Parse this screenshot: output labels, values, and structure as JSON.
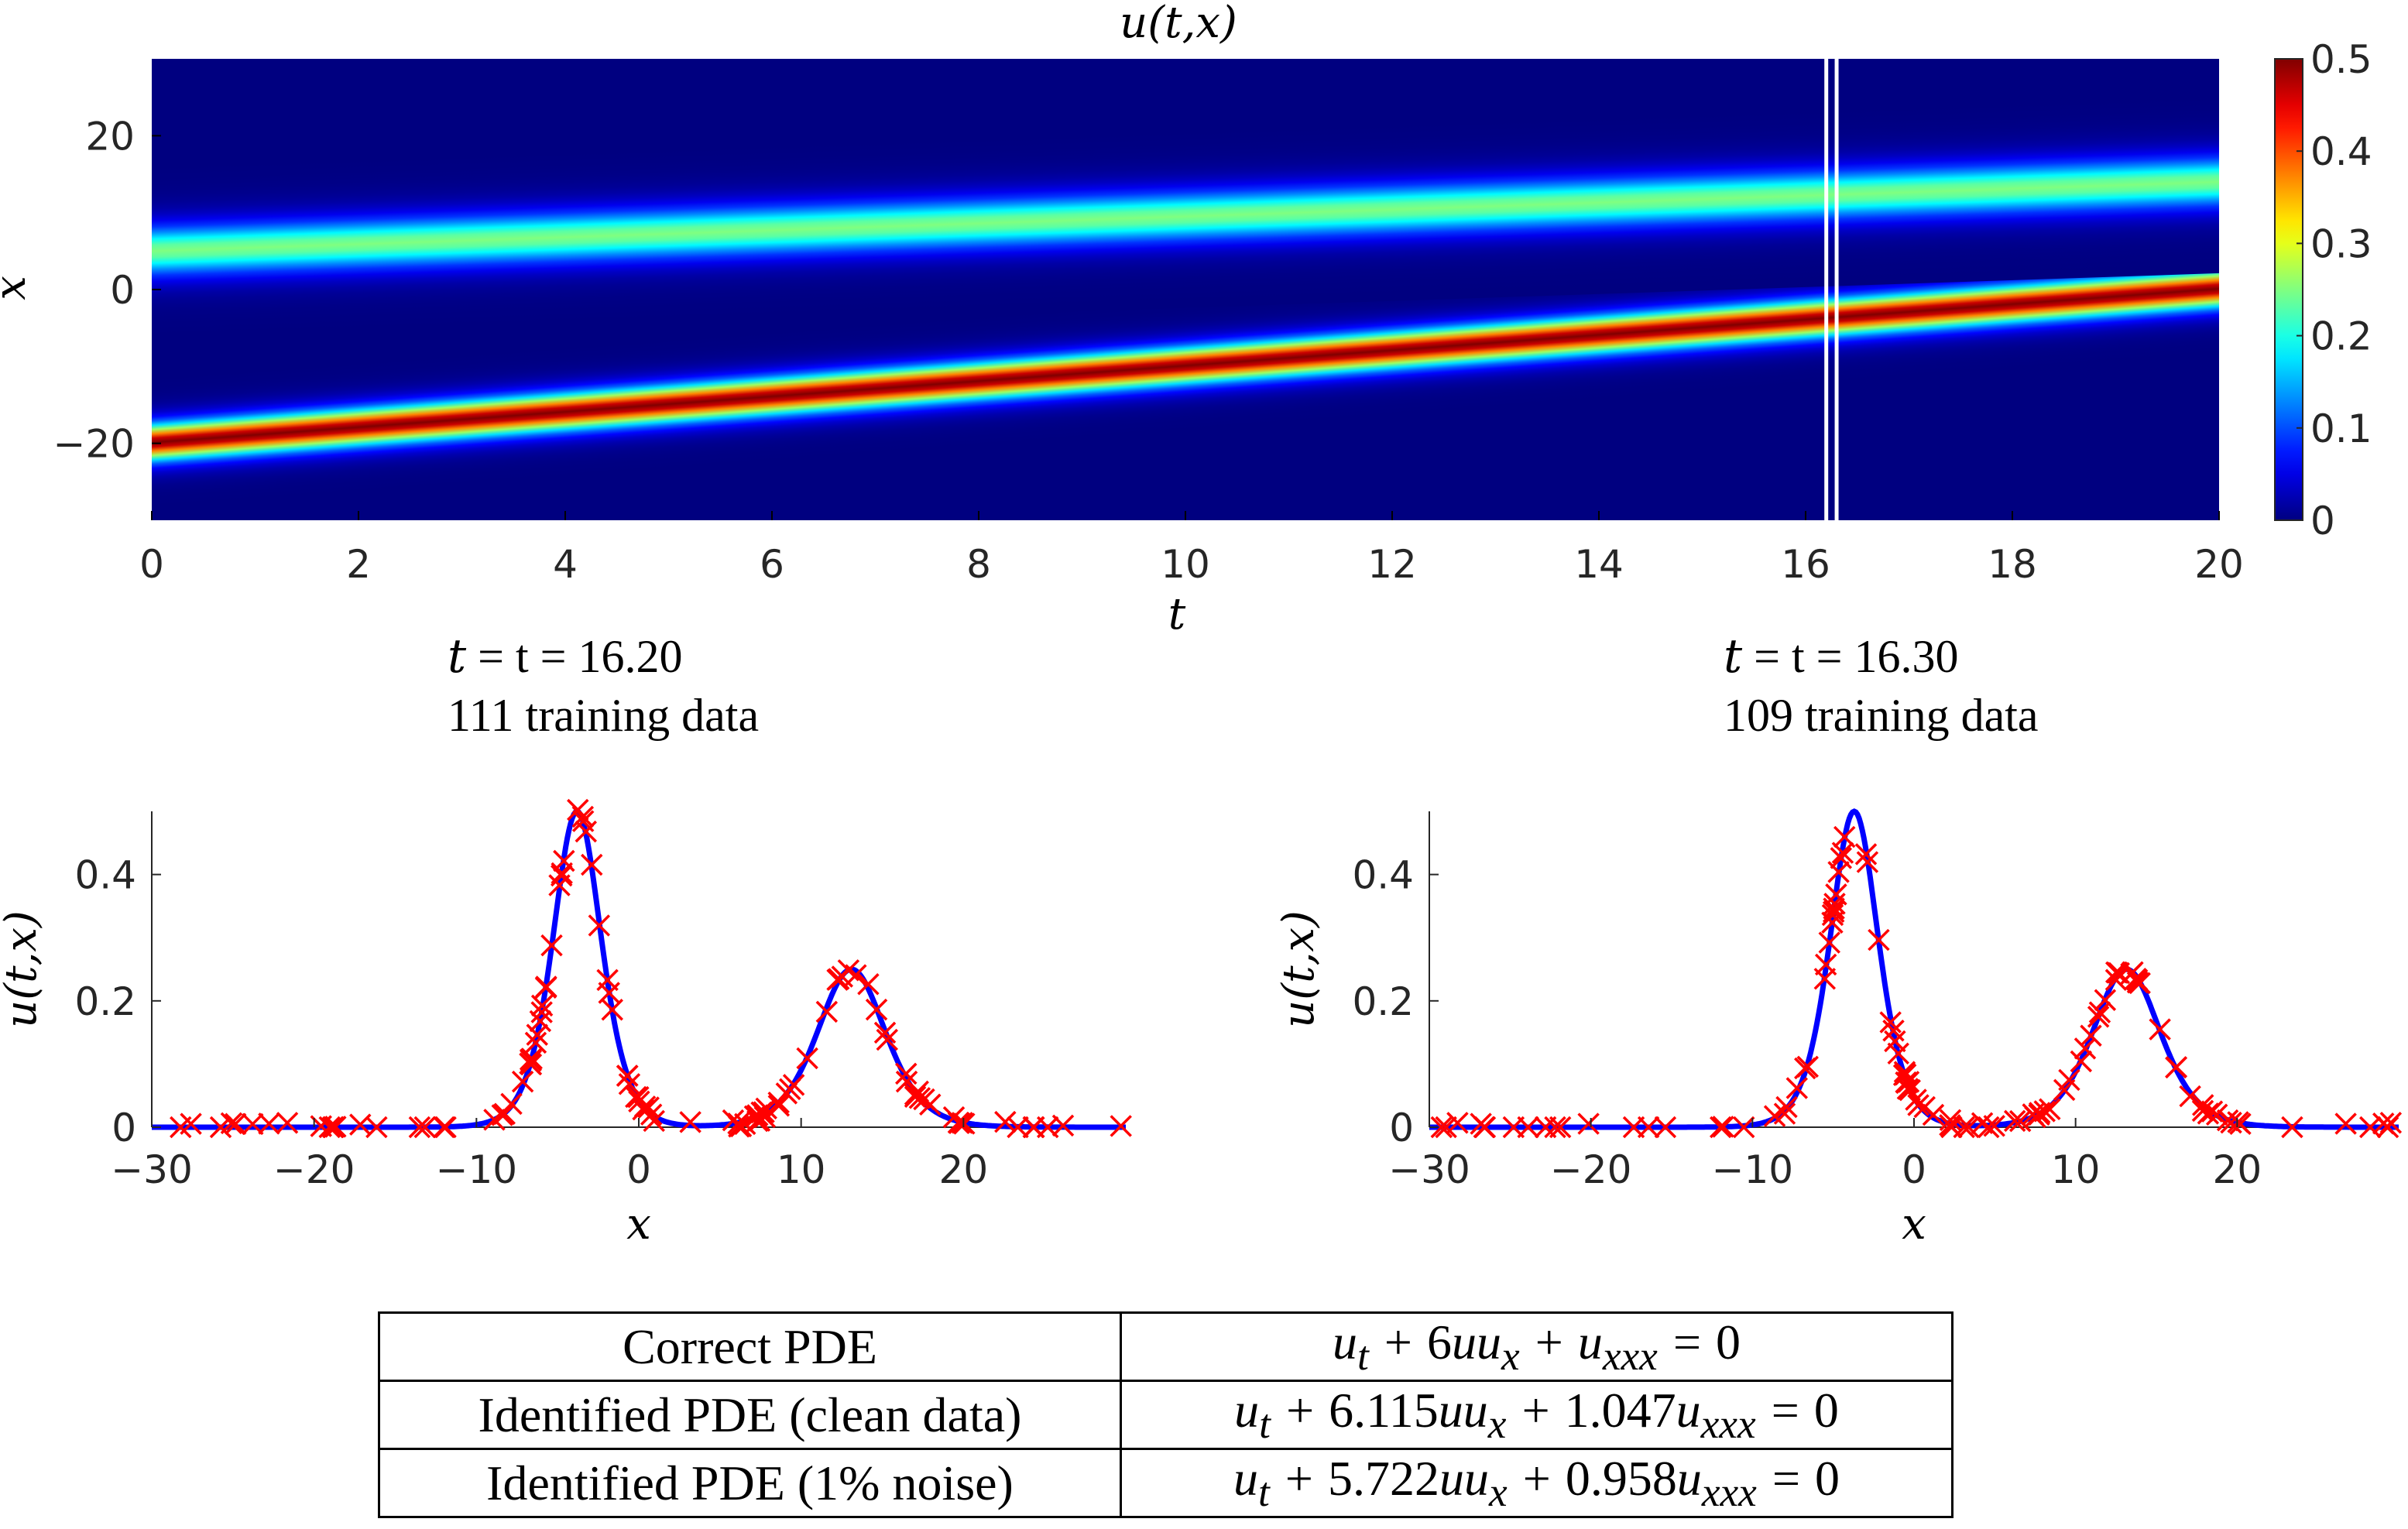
{
  "chart_data": [
    {
      "type": "heatmap",
      "title": "u(t,x)",
      "xlabel": "t",
      "ylabel": "x",
      "xlim": [
        0,
        20
      ],
      "ylim": [
        -30,
        30
      ],
      "xticks": [
        "0",
        "2",
        "4",
        "6",
        "8",
        "10",
        "12",
        "14",
        "16",
        "18",
        "20"
      ],
      "yticks": [
        "-20",
        "0",
        "20"
      ],
      "colorbar": {
        "min": 0,
        "max": 0.5,
        "ticks": [
          "0",
          "0.1",
          "0.2",
          "0.3",
          "0.4",
          "0.5"
        ],
        "colormap": "jet"
      },
      "solitons": [
        {
          "amplitude": 0.5,
          "x_at_t0": -19.9,
          "speed": 1.0
        },
        {
          "amplitude": 0.25,
          "x_at_t0": 5.0,
          "speed": 0.45
        }
      ],
      "marked_times": [
        16.2,
        16.3
      ],
      "grid": false
    },
    {
      "type": "scatter",
      "panel_title_t": "t = 16.20",
      "panel_title_n": "111 training data",
      "xlabel": "x",
      "ylabel": "u(t,x)",
      "xlim": [
        -30,
        30
      ],
      "ylim": [
        0,
        0.5
      ],
      "xticks": [
        "-30",
        "-20",
        "-10",
        "0",
        "10",
        "20"
      ],
      "yticks": [
        "0",
        "0.2",
        "0.4"
      ],
      "curve_peaks": [
        {
          "x": -3.8,
          "height": 0.5
        },
        {
          "x": 13.1,
          "height": 0.25
        }
      ],
      "series": [
        {
          "style": "line",
          "color": "#0000ff"
        },
        {
          "style": "x-marker",
          "color": "#ff0000",
          "count": 111
        }
      ]
    },
    {
      "type": "scatter",
      "panel_title_t": "t = 16.30",
      "panel_title_n": "109 training data",
      "xlabel": "x",
      "ylabel": "u(t,x)",
      "xlim": [
        -30,
        30
      ],
      "ylim": [
        0,
        0.5
      ],
      "xticks": [
        "-30",
        "-20",
        "-10",
        "0",
        "10",
        "20"
      ],
      "yticks": [
        "0",
        "0.2",
        "0.4"
      ],
      "curve_peaks": [
        {
          "x": -3.7,
          "height": 0.5
        },
        {
          "x": 13.15,
          "height": 0.25
        }
      ],
      "series": [
        {
          "style": "line",
          "color": "#0000ff"
        },
        {
          "style": "x-marker",
          "color": "#ff0000",
          "count": 109
        }
      ]
    },
    {
      "type": "table",
      "rows": [
        [
          "Correct PDE",
          "ut + 6uux + uxxx = 0"
        ],
        [
          "Identified PDE (clean data)",
          "ut + 6.115uux + 1.047uxxx = 0"
        ],
        [
          "Identified PDE (1% noise)",
          "ut + 5.722uux + 0.958uxxx = 0"
        ]
      ]
    }
  ],
  "table": {
    "row1_label": "Correct PDE",
    "row2_label": "Identified PDE (clean data)",
    "row3_label": "Identified PDE (1% noise)",
    "row1_eq": {
      "a": "6",
      "b": ""
    },
    "row2_eq": {
      "a": "6.115",
      "b": "1.047"
    },
    "row3_eq": {
      "a": "5.722",
      "b": "0.958"
    }
  }
}
